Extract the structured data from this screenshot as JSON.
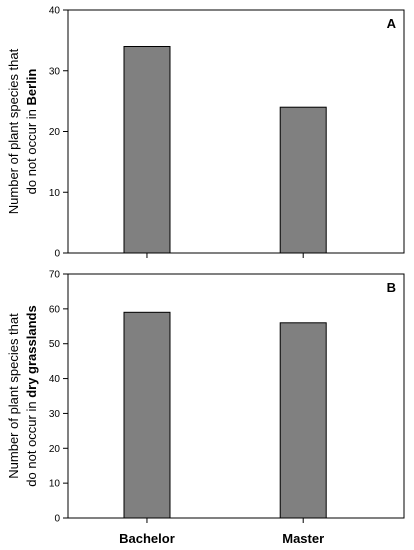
{
  "chart_data": [
    {
      "type": "bar",
      "panel_label": "A",
      "categories": [
        "Bachelor",
        "Master"
      ],
      "values": [
        34,
        24
      ],
      "ylabel_line1": "Number of plant species that",
      "ylabel_line2_prefix": "do not occur in ",
      "ylabel_line2_bold": "Berlin",
      "ylim": [
        0,
        40
      ],
      "yticks": [
        0,
        10,
        20,
        30,
        40
      ],
      "bar_color": "#808080"
    },
    {
      "type": "bar",
      "panel_label": "B",
      "categories": [
        "Bachelor",
        "Master"
      ],
      "values": [
        59,
        56
      ],
      "ylabel_line1": "Number of plant species that",
      "ylabel_line2_prefix": "do not occur in ",
      "ylabel_line2_bold": "dry grasslands",
      "ylim": [
        0,
        70
      ],
      "yticks": [
        0,
        10,
        20,
        30,
        40,
        50,
        60,
        70
      ],
      "bar_color": "#808080"
    }
  ]
}
